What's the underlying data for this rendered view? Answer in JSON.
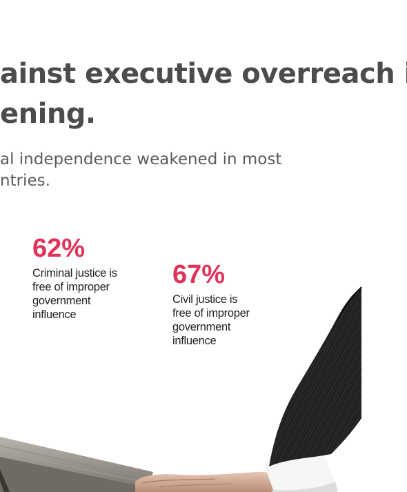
{
  "headline": {
    "line1": "ainst executive overreach is",
    "line2": "ening."
  },
  "subhead": {
    "line1": "al independence weakened in most",
    "line2": "ntries."
  },
  "stats": [
    {
      "value": "62%",
      "line1": "Criminal justice is",
      "line2": "free of improper",
      "line3": "government",
      "line4": "influence"
    },
    {
      "value": "67%",
      "line1": "Civil justice is",
      "line2": "free of improper",
      "line3": "government",
      "line4": "influence"
    }
  ],
  "colors": {
    "accent": "#e1325a",
    "headline": "#4c4c4c",
    "body": "#222222"
  }
}
